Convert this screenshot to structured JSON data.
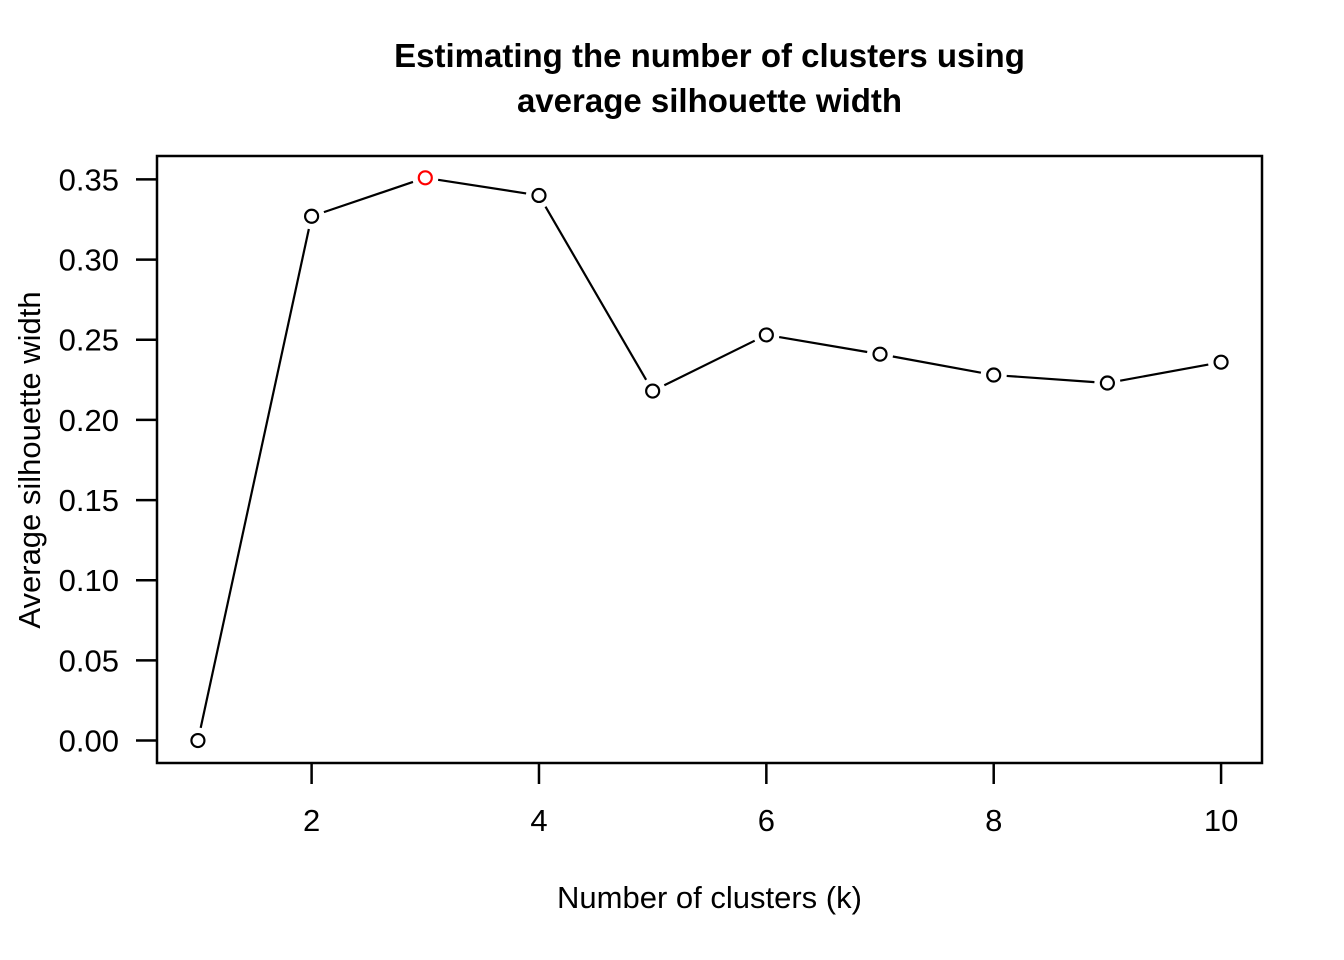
{
  "title_lines": [
    "Estimating the number of clusters using",
    "average silhouette width"
  ],
  "chart_data": {
    "type": "line",
    "title": "Estimating the number of clusters using average silhouette width",
    "xlabel": "Number of clusters (k)",
    "ylabel": "Average silhouette width",
    "x": [
      1,
      2,
      3,
      4,
      5,
      6,
      7,
      8,
      9,
      10
    ],
    "values": [
      0.0,
      0.327,
      0.351,
      0.34,
      0.218,
      0.253,
      0.241,
      0.228,
      0.223,
      0.236
    ],
    "series_name": "Average silhouette width",
    "marker": "open-circle",
    "line_style": "segments-with-gaps",
    "highlight_index": 2,
    "highlight_x": 3,
    "highlight_color": "#ff0000",
    "line_color": "#000000",
    "frame_color": "#000000",
    "background_color": "#ffffff",
    "x_ticks": [
      2,
      4,
      6,
      8,
      10
    ],
    "x_tick_labels": [
      "2",
      "4",
      "6",
      "8",
      "10"
    ],
    "y_ticks": [
      0.0,
      0.05,
      0.1,
      0.15,
      0.2,
      0.25,
      0.3,
      0.35
    ],
    "y_tick_labels": [
      "0.00",
      "0.05",
      "0.10",
      "0.15",
      "0.20",
      "0.25",
      "0.30",
      "0.35"
    ],
    "xlim": [
      0.64,
      10.36
    ],
    "ylim": [
      -0.014,
      0.3646
    ],
    "grid": false,
    "legend": null
  }
}
